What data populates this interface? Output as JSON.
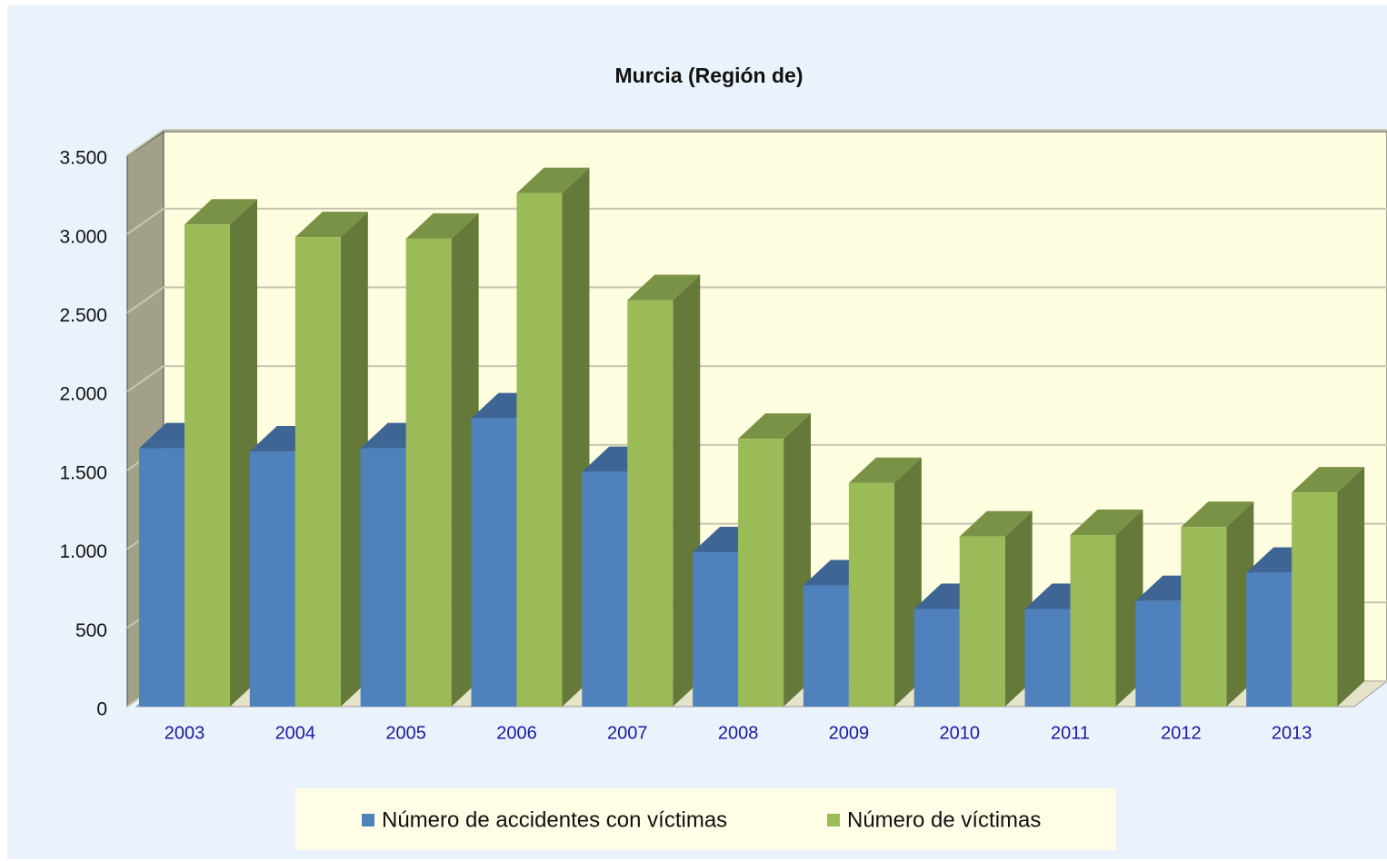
{
  "chart_data": {
    "type": "bar3d",
    "title": "Murcia (Región de)",
    "categories": [
      "2003",
      "2004",
      "2005",
      "2006",
      "2007",
      "2008",
      "2009",
      "2010",
      "2011",
      "2012",
      "2013"
    ],
    "series": [
      {
        "name": "Número de accidentes con víctimas",
        "color": "#4f81bd",
        "values": [
          1640,
          1620,
          1640,
          1830,
          1490,
          980,
          770,
          620,
          620,
          670,
          850
        ]
      },
      {
        "name": "Número de víctimas",
        "color": "#9bbb59",
        "values": [
          3060,
          2980,
          2970,
          3260,
          2580,
          1700,
          1420,
          1080,
          1090,
          1140,
          1360
        ]
      }
    ],
    "ylim": [
      0,
      3500
    ],
    "yticks": [
      0,
      500,
      {
        "value": 1000,
        "label": "1.000"
      },
      {
        "value": 1500,
        "label": "1.500"
      },
      {
        "value": 2000,
        "label": "2.000"
      },
      {
        "value": 2500,
        "label": "2.500"
      },
      {
        "value": 3000,
        "label": "3.000"
      },
      {
        "value": 3500,
        "label": "3.500"
      }
    ],
    "grid": true
  }
}
